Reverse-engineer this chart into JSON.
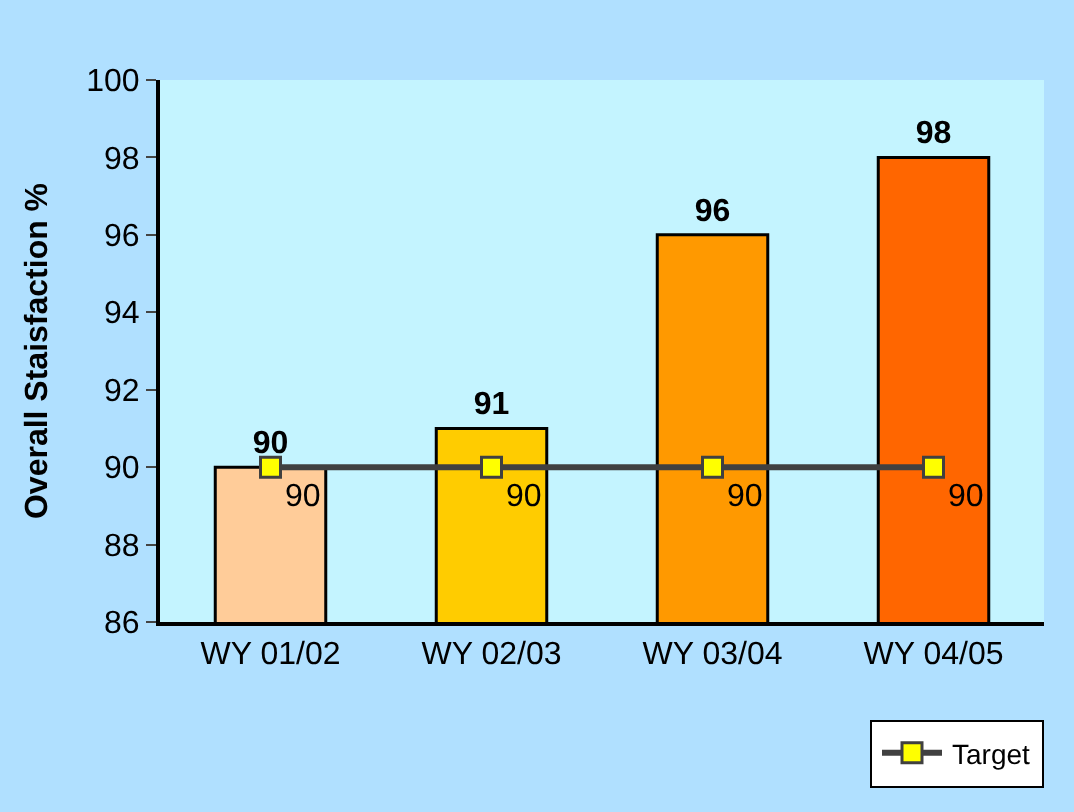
{
  "chart_data": {
    "type": "bar",
    "ylabel": "Overall Staisfaction %",
    "categories": [
      "WY 01/02",
      "WY 02/03",
      "WY 03/04",
      "WY 04/05"
    ],
    "series": [
      {
        "colors": [
          "#ffcc99",
          "#ffcc00",
          "#ff9900",
          "#ff6600"
        ],
        "values": [
          90,
          91,
          96,
          98
        ]
      },
      {
        "type": "line",
        "name": "Target",
        "color": "#404040",
        "colors": [
          "#ffff00",
          "#ffff00",
          "#ffff00",
          "#ffff00"
        ],
        "marker": "square",
        "line_style": "solid",
        "values": [
          90,
          90,
          90,
          90
        ]
      }
    ],
    "ylim": [
      86,
      100
    ],
    "yticks": [
      86,
      88,
      90,
      92,
      94,
      96,
      98,
      100
    ],
    "data_labels": true,
    "grid": false,
    "legend": "bottom right"
  }
}
